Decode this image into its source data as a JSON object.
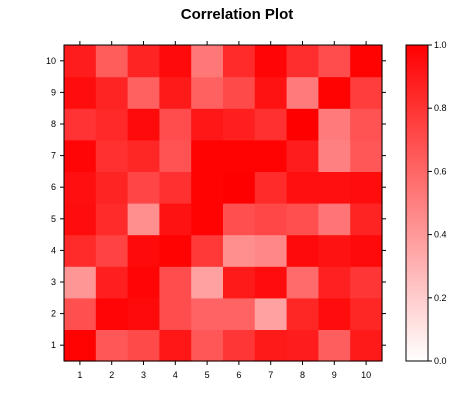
{
  "chart_data": {
    "type": "heatmap",
    "title": "Correlation Plot",
    "x_categories": [
      "1",
      "2",
      "3",
      "4",
      "5",
      "6",
      "7",
      "8",
      "9",
      "10"
    ],
    "y_categories": [
      "1",
      "2",
      "3",
      "4",
      "5",
      "6",
      "7",
      "8",
      "9",
      "10"
    ],
    "rows": [
      [
        0.99,
        0.66,
        0.71,
        0.91,
        0.66,
        0.79,
        0.9,
        0.89,
        0.63,
        0.9
      ],
      [
        0.69,
        0.98,
        0.96,
        0.7,
        0.61,
        0.61,
        0.37,
        0.85,
        0.95,
        0.85
      ],
      [
        0.41,
        0.88,
        0.98,
        0.7,
        0.37,
        0.9,
        0.95,
        0.58,
        0.87,
        0.79
      ],
      [
        0.83,
        0.74,
        0.96,
        0.99,
        0.78,
        0.44,
        0.47,
        0.96,
        0.93,
        0.96
      ],
      [
        0.95,
        0.83,
        0.44,
        0.93,
        0.99,
        0.69,
        0.72,
        0.69,
        0.54,
        0.86
      ],
      [
        0.94,
        0.86,
        0.73,
        0.81,
        0.99,
        1.0,
        0.83,
        0.94,
        0.94,
        0.95
      ],
      [
        0.98,
        0.81,
        0.85,
        0.68,
        0.99,
        0.99,
        0.99,
        0.89,
        0.5,
        0.66
      ],
      [
        0.8,
        0.84,
        0.96,
        0.7,
        0.91,
        0.88,
        0.81,
        1.0,
        0.52,
        0.68
      ],
      [
        0.95,
        0.86,
        0.62,
        0.9,
        0.62,
        0.71,
        0.93,
        0.52,
        0.99,
        0.76
      ],
      [
        0.89,
        0.64,
        0.86,
        0.96,
        0.53,
        0.83,
        0.98,
        0.82,
        0.7,
        0.99
      ]
    ],
    "colorbar": {
      "range": [
        0,
        1
      ],
      "ticks": [
        "0.0",
        "0.2",
        "0.4",
        "0.6",
        "0.8",
        "1.0"
      ],
      "color_low": "#ffffff",
      "color_high": "#ff0000"
    }
  }
}
